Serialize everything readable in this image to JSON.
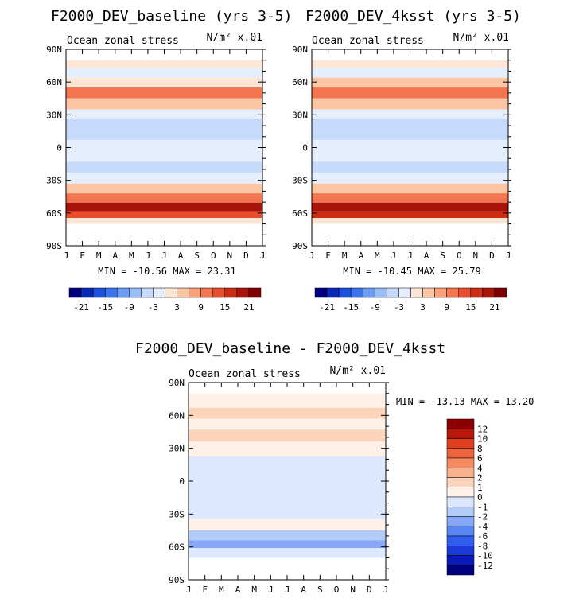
{
  "chart_data": [
    {
      "type": "heatmap",
      "title": "F2000_DEV_baseline (yrs 3-5)",
      "subtitle_left": "Ocean zonal stress",
      "subtitle_right": "N/m² x.01",
      "x_ticks": [
        "J",
        "F",
        "M",
        "A",
        "M",
        "J",
        "J",
        "A",
        "S",
        "O",
        "N",
        "D",
        "J"
      ],
      "y_ticks": [
        "90N",
        "60N",
        "30N",
        "0",
        "30S",
        "60S",
        "90S"
      ],
      "ylim": [
        -90,
        90
      ],
      "min_max_label": "MIN = -10.56 MAX = 23.31",
      "stats": {
        "min": -10.56,
        "max": 23.31
      },
      "colorbar_labels": [
        "-21",
        "-15",
        "-9",
        "-3",
        "3",
        "9",
        "15",
        "21"
      ],
      "colorbar_orientation": "horizontal",
      "bands": [
        {
          "lat": 78,
          "v": 0
        },
        {
          "lat": 68,
          "v": -2
        },
        {
          "lat": 60,
          "v": 2
        },
        {
          "lat": 50,
          "v": 10
        },
        {
          "lat": 40,
          "v": 5
        },
        {
          "lat": 30,
          "v": -1
        },
        {
          "lat": 22,
          "v": -6
        },
        {
          "lat": 12,
          "v": -4
        },
        {
          "lat": 2,
          "v": -2
        },
        {
          "lat": -8,
          "v": -3
        },
        {
          "lat": -18,
          "v": -6
        },
        {
          "lat": -28,
          "v": -3
        },
        {
          "lat": -38,
          "v": 3
        },
        {
          "lat": -46,
          "v": 10
        },
        {
          "lat": -55,
          "v": 18
        },
        {
          "lat": -62,
          "v": 14
        },
        {
          "lat": -67,
          "v": 0
        }
      ]
    },
    {
      "type": "heatmap",
      "title": "F2000_DEV_4ksst (yrs 3-5)",
      "subtitle_left": "Ocean zonal stress",
      "subtitle_right": "N/m² x.01",
      "x_ticks": [
        "J",
        "F",
        "M",
        "A",
        "M",
        "J",
        "J",
        "A",
        "S",
        "O",
        "N",
        "D",
        "J"
      ],
      "y_ticks": [
        "90N",
        "60N",
        "30N",
        "0",
        "30S",
        "60S",
        "90S"
      ],
      "ylim": [
        -90,
        90
      ],
      "min_max_label": "MIN = -10.45 MAX = 25.79",
      "stats": {
        "min": -10.45,
        "max": 25.79
      },
      "colorbar_labels": [
        "-21",
        "-15",
        "-9",
        "-3",
        "3",
        "9",
        "15",
        "21"
      ],
      "colorbar_orientation": "horizontal",
      "bands": [
        {
          "lat": 78,
          "v": 0
        },
        {
          "lat": 68,
          "v": -2
        },
        {
          "lat": 60,
          "v": 3
        },
        {
          "lat": 50,
          "v": 11
        },
        {
          "lat": 40,
          "v": 5
        },
        {
          "lat": 30,
          "v": -1
        },
        {
          "lat": 22,
          "v": -6
        },
        {
          "lat": 12,
          "v": -4
        },
        {
          "lat": 2,
          "v": -2
        },
        {
          "lat": -8,
          "v": -3
        },
        {
          "lat": -18,
          "v": -6
        },
        {
          "lat": -28,
          "v": -3
        },
        {
          "lat": -38,
          "v": 3
        },
        {
          "lat": -46,
          "v": 11
        },
        {
          "lat": -55,
          "v": 20
        },
        {
          "lat": -62,
          "v": 15
        },
        {
          "lat": -67,
          "v": 0
        }
      ]
    },
    {
      "type": "heatmap",
      "title": "F2000_DEV_baseline - F2000_DEV_4ksst",
      "subtitle_left": "Ocean zonal stress",
      "subtitle_right": "N/m² x.01",
      "x_ticks": [
        "J",
        "F",
        "M",
        "A",
        "M",
        "J",
        "J",
        "A",
        "S",
        "O",
        "N",
        "D",
        "J"
      ],
      "y_ticks": [
        "90N",
        "60N",
        "30N",
        "0",
        "30S",
        "60S",
        "90S"
      ],
      "ylim": [
        -90,
        90
      ],
      "min_max_label": "MIN = -13.13 MAX = 13.20",
      "stats": {
        "min": -13.13,
        "max": 13.2
      },
      "colorbar_labels": [
        "12",
        "10",
        "8",
        "6",
        "4",
        "2",
        "1",
        "0",
        "-1",
        "-2",
        "-4",
        "-6",
        "-8",
        "-10",
        "-12"
      ],
      "colorbar_orientation": "vertical",
      "bands": [
        {
          "lat": 72,
          "v": 0
        },
        {
          "lat": 62,
          "v": 1
        },
        {
          "lat": 52,
          "v": 0
        },
        {
          "lat": 42,
          "v": 1
        },
        {
          "lat": 30,
          "v": 0
        },
        {
          "lat": 15,
          "v": -0.5
        },
        {
          "lat": 0,
          "v": -0.5
        },
        {
          "lat": -15,
          "v": -0.5
        },
        {
          "lat": -30,
          "v": -1
        },
        {
          "lat": -40,
          "v": 0.5
        },
        {
          "lat": -50,
          "v": -1.5
        },
        {
          "lat": -58,
          "v": -3
        },
        {
          "lat": -64,
          "v": -1
        }
      ]
    }
  ],
  "colors": {
    "scale_21": [
      "#00007f",
      "#0a29b8",
      "#1e4fdc",
      "#3a72f0",
      "#6c9bf6",
      "#9bbdf8",
      "#c6dafb",
      "#e4eefd",
      "#fde6d6",
      "#fcc6a4",
      "#f9a07a",
      "#f37650",
      "#e84e2e",
      "#cc2c12",
      "#a8130a",
      "#7f0000"
    ],
    "scale_diff": [
      "#00007f",
      "#0a1ab8",
      "#1a3ad8",
      "#2f5ef0",
      "#5a86f3",
      "#86a8f6",
      "#b3cbf9",
      "#dbe8fd",
      "#fdf0e6",
      "#fcd4bb",
      "#f9b08c",
      "#f58a62",
      "#ee6440",
      "#de3f1f",
      "#b8190b",
      "#8a0000"
    ]
  }
}
